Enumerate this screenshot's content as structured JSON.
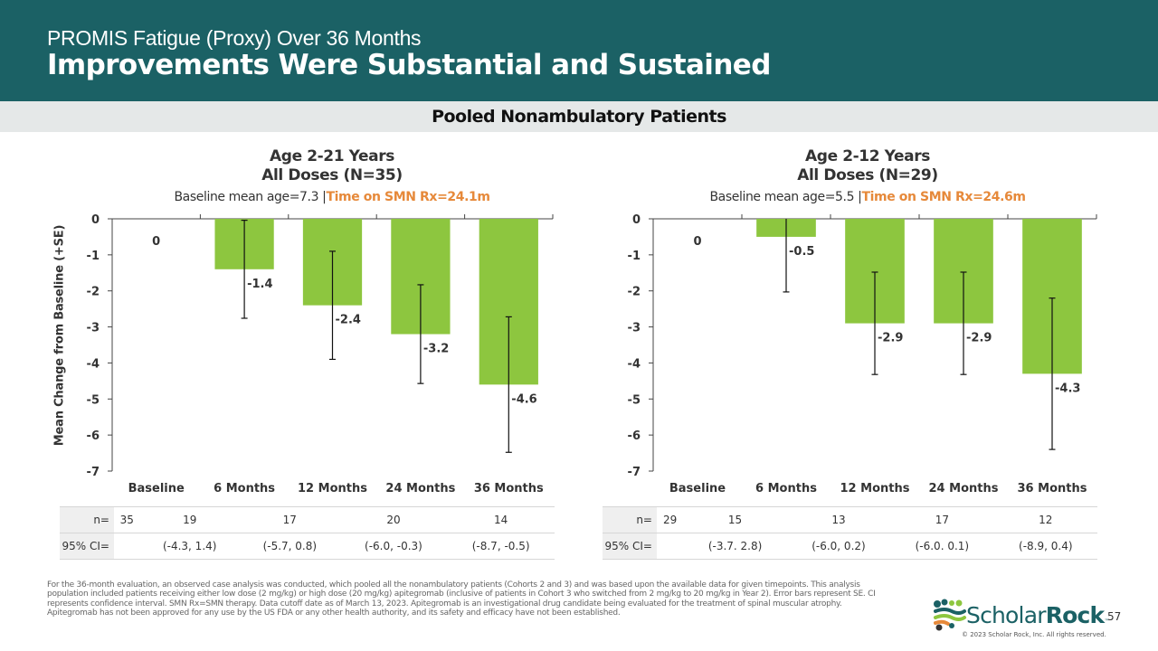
{
  "header": {
    "kicker": "PROMIS Fatigue (Proxy) Over 36 Months",
    "title": "Improvements Were Substantial and Sustained"
  },
  "band": {
    "label": "Pooled Nonambulatory Patients"
  },
  "colors": {
    "header_bg": "#1b6165",
    "band_bg": "#e5e8e8",
    "bar": "#8dc63f",
    "highlight": "#e6893a",
    "brand": "#1b6165"
  },
  "chart_data": [
    {
      "type": "bar",
      "title_line1": "Age 2-21 Years",
      "title_line2": "All Doses (N=35)",
      "subtitle_plain": "Baseline mean age=7.3 |",
      "subtitle_highlight": "Time on SMN Rx=24.1m",
      "xlabel": "",
      "ylabel": "Mean Change from Baseline (+SE)",
      "ylim": [
        -7,
        0
      ],
      "yticks": [
        0,
        -1,
        -2,
        -3,
        -4,
        -5,
        -6,
        -7
      ],
      "categories": [
        "Baseline",
        "6 Months",
        "12 Months",
        "24 Months",
        "36 Months"
      ],
      "values": [
        0,
        -1.4,
        -2.4,
        -3.2,
        -4.6
      ],
      "value_labels": [
        "0",
        "-1.4",
        "-2.4",
        "-3.2",
        "-4.6"
      ],
      "se": [
        null,
        1.36,
        1.5,
        1.37,
        1.88
      ],
      "grid": false,
      "table": {
        "rows": [
          {
            "label": "n=",
            "values": [
              "35",
              "19",
              "17",
              "20",
              "14"
            ]
          },
          {
            "label": "95% CI=",
            "values": [
              "",
              "(-4.3, 1.4)",
              "(-5.7, 0.8)",
              "(-6.0, -0.3)",
              "(-8.7, -0.5)"
            ]
          }
        ]
      }
    },
    {
      "type": "bar",
      "title_line1": "Age 2-12 Years",
      "title_line2": "All Doses (N=29)",
      "subtitle_plain": "Baseline mean age=5.5 |",
      "subtitle_highlight": "Time on SMN Rx=24.6m",
      "xlabel": "",
      "ylabel": "",
      "ylim": [
        -7,
        0
      ],
      "yticks": [
        0,
        -1,
        -2,
        -3,
        -4,
        -5,
        -6,
        -7
      ],
      "categories": [
        "Baseline",
        "6 Months",
        "12 Months",
        "24 Months",
        "36 Months"
      ],
      "values": [
        0,
        -0.5,
        -2.9,
        -2.9,
        -4.3
      ],
      "value_labels": [
        "0",
        "-0.5",
        "-2.9",
        "-2.9",
        "-4.3"
      ],
      "se": [
        null,
        1.53,
        1.42,
        1.42,
        2.1
      ],
      "grid": false,
      "table": {
        "rows": [
          {
            "label": "n=",
            "values": [
              "29",
              "15",
              "13",
              "17",
              "12"
            ]
          },
          {
            "label": "95% CI=",
            "values": [
              "",
              "(-3.7. 2.8)",
              "(-6.0, 0.2)",
              "(-6.0. 0.1)",
              "(-8.9, 0.4)"
            ]
          }
        ]
      }
    }
  ],
  "footnote": "For the 36-month evaluation, an observed case analysis was conducted, which pooled all the nonambulatory patients (Cohorts 2 and 3) and was based upon the available data for given timepoints. This analysis population included patients receiving either low dose (2 mg/kg) or high dose (20 mg/kg) apitegromab (inclusive of patients in Cohort 3 who switched from 2 mg/kg to 20 mg/kg in Year 2). Error bars represent SE. CI represents confidence interval. SMN Rx=SMN therapy. Data cutoff date as of March 13, 2023. Apitegromab is an investigational drug candidate being evaluated for the treatment of spinal muscular atrophy. Apitegromab has not been approved for any use by the US FDA or any other health authority, and its safety and efficacy have not been established.",
  "footer": {
    "logo_light": "Scholar",
    "logo_bold": "Rock",
    "logo_tm": "™",
    "copyright": "© 2023 Scholar Rock, Inc. All rights reserved.",
    "page_number": "57"
  }
}
